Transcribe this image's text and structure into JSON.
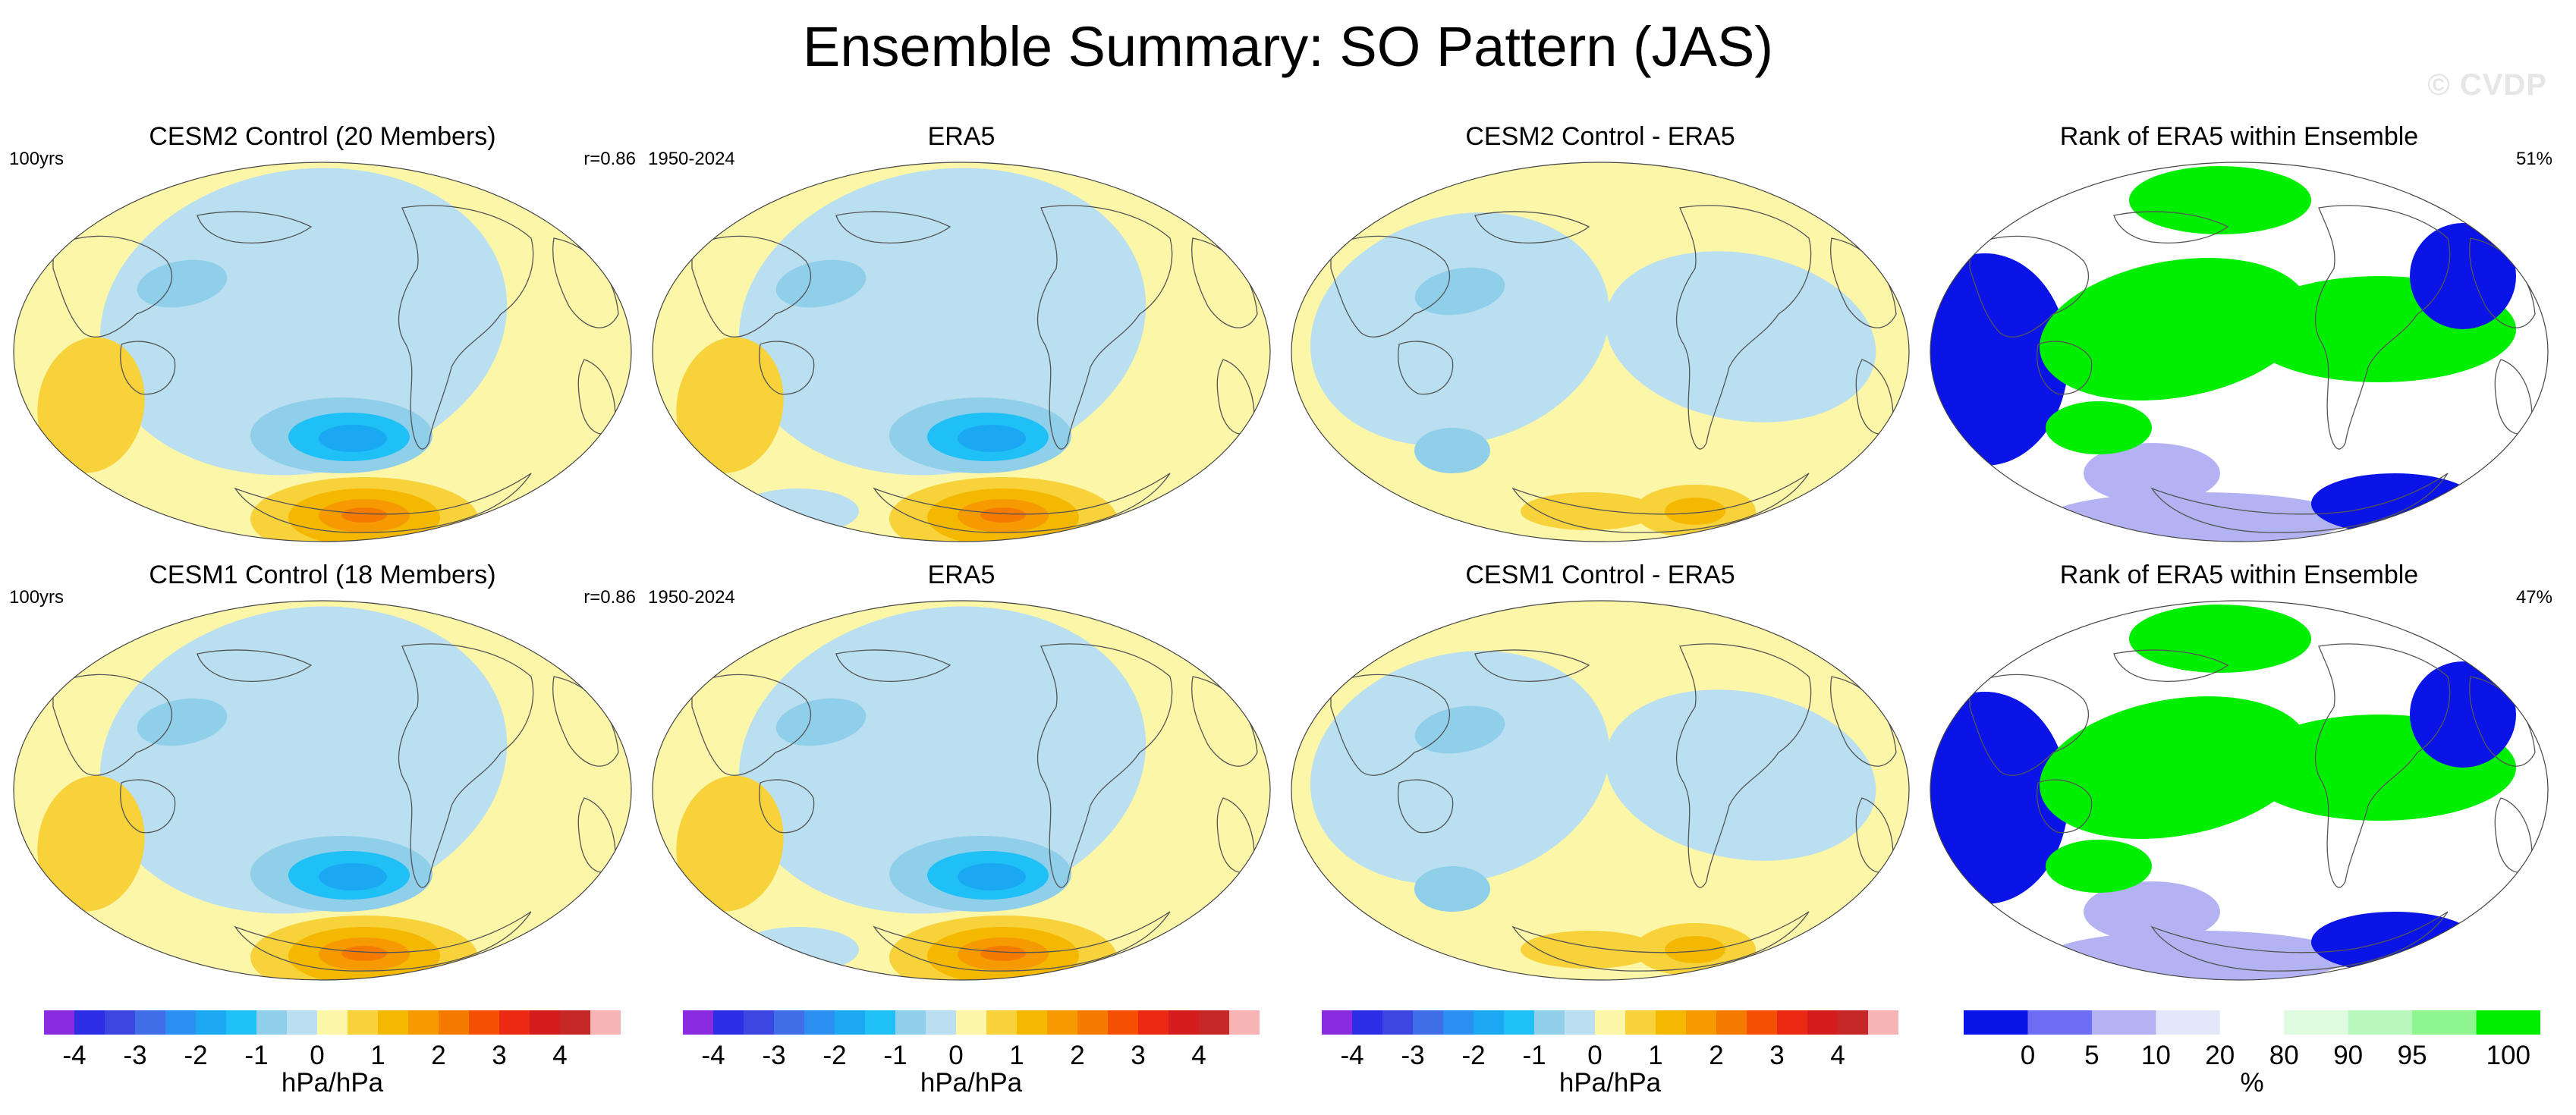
{
  "title": "Ensemble Summary: SO Pattern (JAS)",
  "watermark": "© CVDP",
  "colors": {
    "diverging": [
      "#8a2be2",
      "#2e2ee6",
      "#3c46e0",
      "#3f6ee8",
      "#2a8ff0",
      "#1aa8f2",
      "#1fc0f5",
      "#8fcfea",
      "#b9dff0",
      "#fbf6a8",
      "#f7d23a",
      "#f5b800",
      "#f59a00",
      "#f47a00",
      "#f45000",
      "#ec2a14",
      "#d41c1c",
      "#c62828",
      "#f8b4b4"
    ],
    "rank": [
      "#0a14e6",
      "#6c6cf4",
      "#b3b3f3",
      "#e4e6fa",
      "#ffffff",
      "#dffce0",
      "#b8f8bc",
      "#8ef58f",
      "#00ee00"
    ]
  },
  "panels": [
    {
      "id": "r1c1",
      "title": "CESM2 Control (20 Members)",
      "left": "100yrs",
      "right": "r=0.86",
      "type": "mean"
    },
    {
      "id": "r1c2",
      "title": "ERA5",
      "left": "1950-2024",
      "right": "",
      "type": "mean"
    },
    {
      "id": "r1c3",
      "title": "CESM2 Control - ERA5",
      "left": "",
      "right": "",
      "type": "diff"
    },
    {
      "id": "r1c4",
      "title": "Rank of ERA5 within Ensemble",
      "left": "",
      "right": "51%",
      "type": "rank"
    },
    {
      "id": "r2c1",
      "title": "CESM1 Control (18 Members)",
      "left": "100yrs",
      "right": "r=0.86",
      "type": "mean"
    },
    {
      "id": "r2c2",
      "title": "ERA5",
      "left": "1950-2024",
      "right": "",
      "type": "mean"
    },
    {
      "id": "r2c3",
      "title": "CESM1 Control - ERA5",
      "left": "",
      "right": "",
      "type": "diff"
    },
    {
      "id": "r2c4",
      "title": "Rank of ERA5 within Ensemble",
      "left": "",
      "right": "47%",
      "type": "rank"
    }
  ],
  "colorbars": [
    {
      "type": "diverging",
      "unit": "hPa/hPa",
      "ticks": [
        "-4",
        "-3",
        "-2",
        "-1",
        "0",
        "1",
        "2",
        "3",
        "4"
      ]
    },
    {
      "type": "diverging",
      "unit": "hPa/hPa",
      "ticks": [
        "-4",
        "-3",
        "-2",
        "-1",
        "0",
        "1",
        "2",
        "3",
        "4"
      ]
    },
    {
      "type": "diverging",
      "unit": "hPa/hPa",
      "ticks": [
        "-4",
        "-3",
        "-2",
        "-1",
        "0",
        "1",
        "2",
        "3",
        "4"
      ]
    },
    {
      "type": "rank",
      "unit": "%",
      "ticks": [
        "0",
        "5",
        "10",
        "20",
        "80",
        "90",
        "95",
        "100"
      ]
    }
  ]
}
